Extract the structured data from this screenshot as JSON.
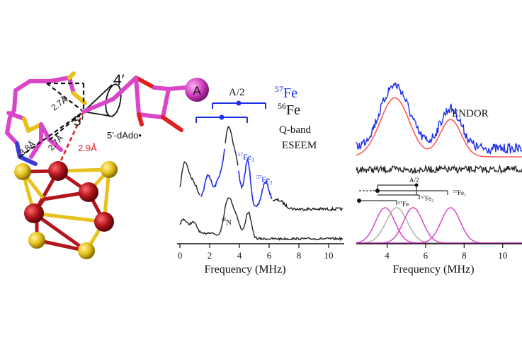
{
  "structure": {
    "label_4prime": "4′",
    "label_5prime": "5′",
    "label_adenine": "A",
    "label_dado": "5′-dAdo•",
    "dist_2_7_top": "2.7Å",
    "dist_3_8": "3.8Å",
    "dist_2_7_mid": "2.7Å",
    "dist_2_9": "2.9Å"
  },
  "eseem": {
    "a_half": "A/2",
    "title_57fe_sup": "57",
    "title_57fe": "Fe",
    "title_56fe_sup": "56",
    "title_56fe": "Fe",
    "qband": "Q-band",
    "eseem": "ESEEM",
    "peak_fe3_sup": "57",
    "peak_fe3": "Fe",
    "peak_fe3_sub": "3",
    "peak_fe2_sup": "57",
    "peak_fe2": "Fe",
    "peak_fe2_sub": "2",
    "peak_n_sup": "14",
    "peak_n": "N",
    "xlabel": "Frequency (MHz)",
    "ticks": [
      "0",
      "2",
      "4",
      "6",
      "8",
      "10"
    ]
  },
  "endor": {
    "title": "ENDOR",
    "a_half": "A/2",
    "fe1_sup": "57",
    "fe1": "Fe",
    "fe1_sub": "1",
    "fe2_sup": "57",
    "fe2": "Fe",
    "fe2_sub": "2",
    "fe_sup": "57",
    "fe": "Fe",
    "xlabel": "Frequency (MHz)",
    "ticks": [
      "4",
      "6",
      "8",
      "10"
    ]
  },
  "colors": {
    "magenta": "#d946c7",
    "red_atom": "#b3151d",
    "yellow_atom": "#e8c21c",
    "blue": "#1f2fe6",
    "red_fit": "#ff5a5a",
    "gray_fit": "#b0b0b0",
    "red_dash": "#e02020"
  }
}
